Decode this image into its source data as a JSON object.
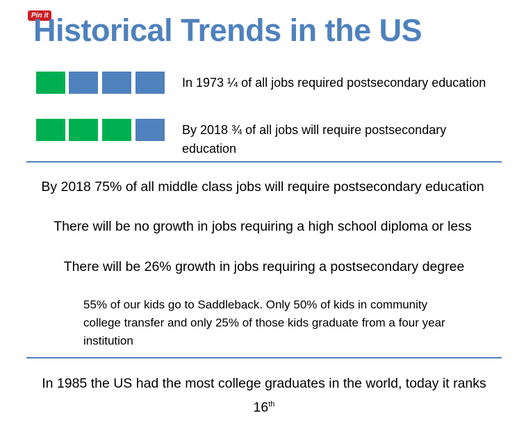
{
  "pin_button": "Pin it",
  "title": "Historical Trends in the US",
  "comparisons": [
    {
      "text": "In 1973 ¼ of all jobs required postsecondary education"
    },
    {
      "text": "By 2018 ¾ of all jobs will require postsecondary education"
    }
  ],
  "statements": [
    "By 2018 75% of all middle class jobs will require postsecondary education",
    "There will be no growth in jobs requiring a high school diploma or less",
    "There will be 26% growth in jobs requiring a postsecondary degree"
  ],
  "note": "55% of our kids go to Saddleback.  Only 50% of kids in community college transfer and only 25% of those kids graduate from a four year institution",
  "closing": {
    "text": "In 1985 the US had the most college graduates in the world, today it ranks 16",
    "superscript": "th"
  }
}
